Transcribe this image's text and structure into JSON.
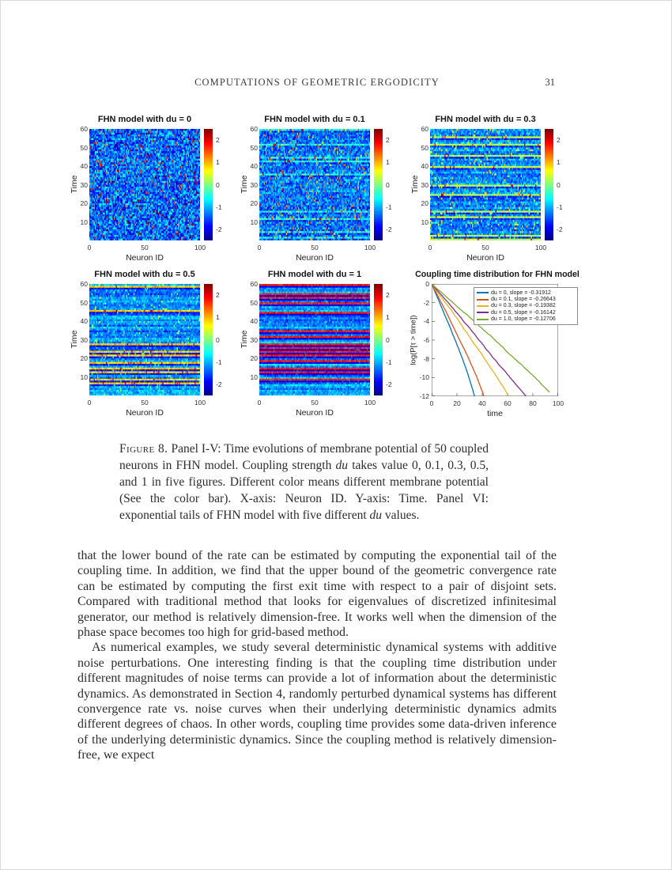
{
  "header": {
    "title": "COMPUTATIONS OF GEOMETRIC ERGODICITY",
    "page_number": "31"
  },
  "caption": {
    "segments": [
      {
        "t": "Figure 8.",
        "style": "smallcaps"
      },
      {
        "t": " Panel I-V: Time evolutions of membrane potential of 50 coupled neurons in FHN model. Coupling strength "
      },
      {
        "t": "du",
        "style": "italic"
      },
      {
        "t": " takes value 0, 0.1, 0.3, 0.5, and 1 in five figures. Different color means different membrane potential (See the color bar). X-axis: Neuron ID. Y-axis: Time. Panel VI: exponential tails of FHN model with five different "
      },
      {
        "t": "du",
        "style": "italic"
      },
      {
        "t": " values."
      }
    ]
  },
  "paragraphs": [
    "that the lower bound of the rate can be estimated by computing the exponential tail of the coupling time. In addition, we find that the upper bound of the geometric convergence rate can be estimated by computing the first exit time with respect to a pair of disjoint sets. Compared with traditional method that looks for eigenvalues of discretized infinitesimal generator, our method is relatively dimension-free. It works well when the dimension of the phase space becomes too high for grid-based method.",
    "As numerical examples, we study several deterministic dynamical systems with additive noise perturbations. One interesting finding is that the coupling time distribution under different magnitudes of noise terms can provide a lot of information about the deterministic dynamics. As demonstrated in Section 4, randomly perturbed dynamical systems has different convergence rate vs. noise curves when their underlying deterministic dynamics admits different degrees of chaos. In other words, coupling time provides some data-driven inference of the underlying deterministic dynamics. Since the coupling method is relatively dimension-free, we expect"
  ],
  "chart_data": [
    {
      "type": "heatmap",
      "title": "FHN model with du = 0",
      "du": 0,
      "xlabel": "Neuron ID",
      "ylabel": "Time",
      "xlim": [
        0,
        100
      ],
      "ylim": [
        0,
        60
      ],
      "xticks": [
        0,
        50,
        100
      ],
      "yticks": [
        60,
        50,
        40,
        30,
        20,
        10
      ],
      "colormap": "jet",
      "clim": [
        -2.5,
        2.5
      ],
      "colorbar_ticks": [
        2,
        1,
        0,
        -1,
        -2
      ],
      "pattern": "uncorrelated speckle, no synchronized rows",
      "seed": 101,
      "coupling_mix": 0.0,
      "row_spike_prob": 0.18
    },
    {
      "type": "heatmap",
      "title": "FHN model with du = 0.1",
      "du": 0.1,
      "xlabel": "Neuron ID",
      "ylabel": "Time",
      "xlim": [
        0,
        100
      ],
      "ylim": [
        0,
        60
      ],
      "xticks": [
        0,
        50,
        100
      ],
      "yticks": [
        60,
        50,
        40,
        30,
        20,
        10
      ],
      "colormap": "jet",
      "clim": [
        -2.5,
        2.5
      ],
      "colorbar_ticks": [
        2,
        1,
        0,
        -1,
        -2
      ],
      "pattern": "speckle with faint horizontal correlation",
      "seed": 202,
      "coupling_mix": 0.22,
      "row_spike_prob": 0.18
    },
    {
      "type": "heatmap",
      "title": "FHN model with du = 0.3",
      "du": 0.3,
      "xlabel": "Neuron ID",
      "ylabel": "Time",
      "xlim": [
        0,
        100
      ],
      "ylim": [
        0,
        60
      ],
      "xticks": [
        0,
        50,
        100
      ],
      "yticks": [
        60,
        50,
        40,
        30,
        20,
        10
      ],
      "colormap": "jet",
      "clim": [
        -2.5,
        2.5
      ],
      "colorbar_ticks": [
        2,
        1,
        0,
        -1,
        -2
      ],
      "pattern": "visible thin red synchronized spike rows",
      "seed": 303,
      "coupling_mix": 0.45,
      "row_spike_prob": 0.18
    },
    {
      "type": "heatmap",
      "title": "FHN model with du = 0.5",
      "du": 0.5,
      "xlabel": "Neuron ID",
      "ylabel": "Time",
      "xlim": [
        0,
        100
      ],
      "ylim": [
        0,
        60
      ],
      "xticks": [
        0,
        50,
        100
      ],
      "yticks": [
        60,
        50,
        40,
        30,
        20,
        10
      ],
      "colormap": "jet",
      "clim": [
        -2.5,
        2.5
      ],
      "colorbar_ticks": [
        2,
        1,
        0,
        -1,
        -2
      ],
      "pattern": "strong horizontal banding of spike rows",
      "seed": 404,
      "coupling_mix": 0.62,
      "row_spike_prob": 0.2
    },
    {
      "type": "heatmap",
      "title": "FHN model with du = 1",
      "du": 1,
      "xlabel": "Neuron ID",
      "ylabel": "Time",
      "xlim": [
        0,
        100
      ],
      "ylim": [
        0,
        60
      ],
      "xticks": [
        0,
        50,
        100
      ],
      "yticks": [
        60,
        50,
        40,
        30,
        20,
        10
      ],
      "colormap": "jet",
      "clim": [
        -2.5,
        2.5
      ],
      "colorbar_ticks": [
        2,
        1,
        0,
        -1,
        -2
      ],
      "pattern": "fully synchronized red spike rows followed by dark refractory rows",
      "seed": 505,
      "coupling_mix": 0.85,
      "row_spike_prob": 0.22
    },
    {
      "type": "line",
      "title": "Coupling time distribution for FHN model",
      "xlabel": "time",
      "ylabel": "log(P[τ > time])",
      "xlim": [
        0,
        100
      ],
      "ylim": [
        -12,
        0
      ],
      "xticks": [
        0,
        20,
        40,
        60,
        80,
        100
      ],
      "yticks": [
        0,
        -2,
        -4,
        -6,
        -8,
        -10,
        -12
      ],
      "legend_position": "top-right",
      "grid": false,
      "series": [
        {
          "name": "du = 0, slope = -0.31912",
          "color": "#0072BD",
          "slope": -0.31912,
          "x_start": 0,
          "y_start": 0,
          "x_end": 34,
          "y_end": -12
        },
        {
          "name": "du = 0.1, slope = -0.26643",
          "color": "#D95319",
          "slope": -0.26643,
          "x_start": 0,
          "y_start": 0,
          "x_end": 42,
          "y_end": -12
        },
        {
          "name": "du = 0.3, slope = -0.19382",
          "color": "#EDB120",
          "slope": -0.19382,
          "x_start": 0,
          "y_start": 0,
          "x_end": 60,
          "y_end": -12
        },
        {
          "name": "du = 0.5, slope = -0.16142",
          "color": "#7E2F8E",
          "slope": -0.16142,
          "x_start": 0,
          "y_start": 0,
          "x_end": 74,
          "y_end": -12
        },
        {
          "name": "du = 1.0, slope = -0.12706",
          "color": "#77AC30",
          "slope": -0.12706,
          "x_start": 0,
          "y_start": 0,
          "x_end": 93,
          "y_end": -12
        }
      ]
    }
  ]
}
